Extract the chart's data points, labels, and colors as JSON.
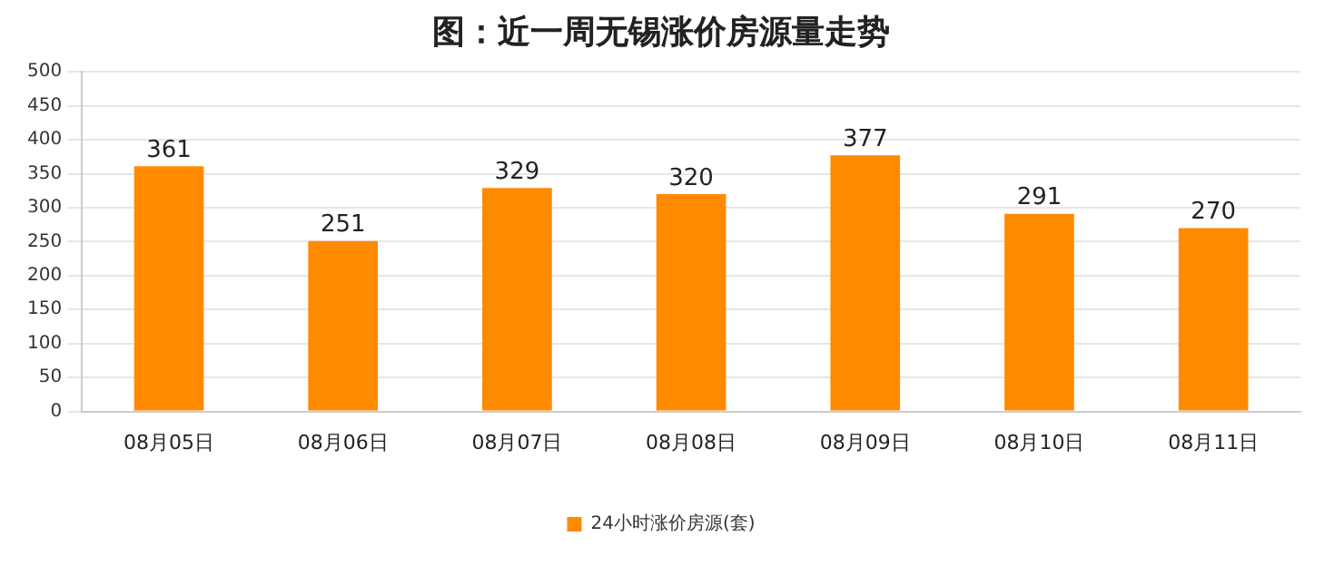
{
  "chart_data": {
    "type": "bar",
    "title": "图：近一周无锡涨价房源量走势",
    "categories": [
      "08月05日",
      "08月06日",
      "08月07日",
      "08月08日",
      "08月09日",
      "08月10日",
      "08月11日"
    ],
    "series": [
      {
        "name": "24小时涨价房源(套)",
        "color": "#ff8a00",
        "values": [
          361,
          251,
          329,
          320,
          377,
          291,
          270
        ]
      }
    ],
    "ylim": [
      0,
      500
    ],
    "yticks": [
      0,
      50,
      100,
      150,
      200,
      250,
      300,
      350,
      400,
      450,
      500
    ],
    "grid": "y",
    "legend": "bottom",
    "data_labels": true
  }
}
